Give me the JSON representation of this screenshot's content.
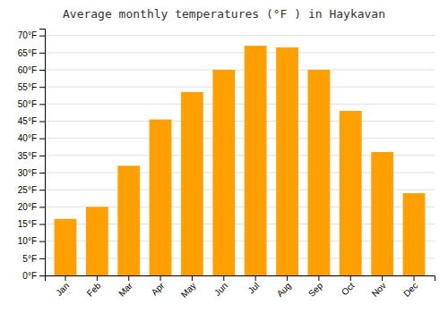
{
  "chart_data": {
    "type": "bar",
    "title": "Average monthly temperatures (°F ) in Haykavan",
    "categories": [
      "Jan",
      "Feb",
      "Mar",
      "Apr",
      "May",
      "Jun",
      "Jul",
      "Aug",
      "Sep",
      "Oct",
      "Nov",
      "Dec"
    ],
    "values": [
      16.5,
      20.0,
      32.0,
      45.5,
      53.5,
      60.0,
      67.0,
      66.5,
      60.0,
      48.0,
      36.0,
      24.0
    ],
    "color": "#FFA000",
    "ylim": [
      0,
      72
    ],
    "yticks": [
      {
        "value": 0,
        "label": "0°F"
      },
      {
        "value": 5,
        "label": "5°F"
      },
      {
        "value": 10,
        "label": "10°F"
      },
      {
        "value": 15,
        "label": "15°F"
      },
      {
        "value": 20,
        "label": "20°F"
      },
      {
        "value": 25,
        "label": "25°F"
      },
      {
        "value": 30,
        "label": "30°F"
      },
      {
        "value": 35,
        "label": "35°F"
      },
      {
        "value": 40,
        "label": "40°F"
      },
      {
        "value": 45,
        "label": "45°F"
      },
      {
        "value": 50,
        "label": "50°F"
      },
      {
        "value": 55,
        "label": "55°F"
      },
      {
        "value": 60,
        "label": "60°F"
      },
      {
        "value": 65,
        "label": "65°F"
      },
      {
        "value": 70,
        "label": "70°F"
      }
    ],
    "grid": true
  }
}
